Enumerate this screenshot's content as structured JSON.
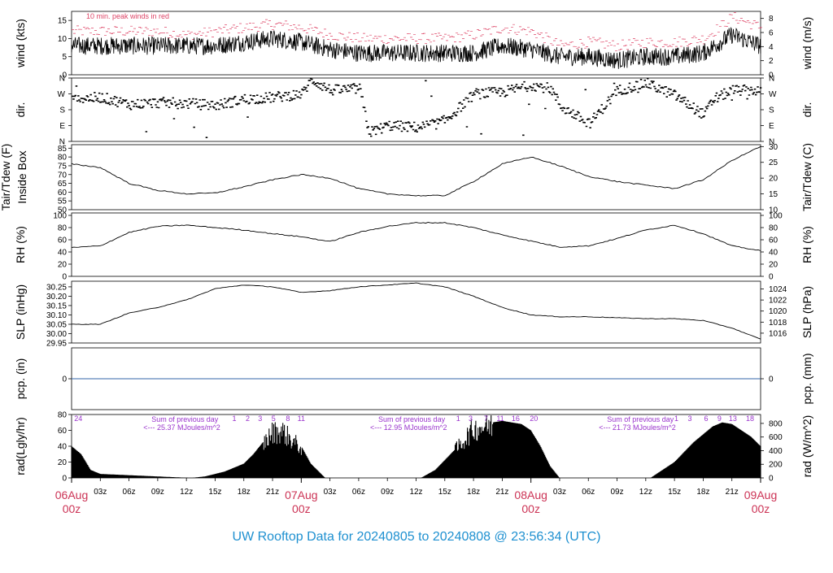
{
  "title": "UW Rooftop Data for 20240805  to  20240808 @ 23:56:34  (UTC)",
  "colors": {
    "axis": "#000000",
    "title": "#1e90d0",
    "date": "#cc3355",
    "peak": "#dd4466",
    "rad_note": "#9933cc",
    "pcp_line": "#3366aa"
  },
  "time_axis": {
    "hour_labels": [
      "03z",
      "06z",
      "09z",
      "12z",
      "15z",
      "18z",
      "21z",
      "03z",
      "06z",
      "09z",
      "12z",
      "15z",
      "18z",
      "21z",
      "03z",
      "06z",
      "09z",
      "12z",
      "15z",
      "18z",
      "21z"
    ],
    "hour_positions_h": [
      3,
      6,
      9,
      12,
      15,
      18,
      21,
      27,
      30,
      33,
      36,
      39,
      42,
      45,
      51,
      54,
      57,
      60,
      63,
      66,
      69
    ],
    "day_labels": [
      {
        "date": "06Aug",
        "sub": "00z",
        "h": 0
      },
      {
        "date": "07Aug",
        "sub": "00z",
        "h": 24
      },
      {
        "date": "08Aug",
        "sub": "00z",
        "h": 48
      },
      {
        "date": "09Aug",
        "sub": "00z",
        "h": 72
      }
    ],
    "range_h": [
      0,
      72
    ]
  },
  "chart_data": [
    {
      "type": "line",
      "name": "wind",
      "ylabel": "wind (kts)",
      "ylabel_right": "wind (m/s)",
      "ylim": [
        0,
        17.5
      ],
      "yticks": [
        0,
        5,
        10,
        15
      ],
      "right_ylim": [
        0,
        9
      ],
      "right_yticks": [
        0,
        2,
        4,
        6,
        8
      ],
      "annotation": "10 min. peak winds in red",
      "x": [
        0,
        3,
        6,
        9,
        12,
        15,
        18,
        21,
        24,
        27,
        30,
        33,
        36,
        39,
        42,
        45,
        48,
        51,
        54,
        57,
        60,
        63,
        66,
        69,
        72
      ],
      "values": [
        8,
        8,
        8,
        8,
        8,
        8,
        9,
        10,
        9,
        7,
        6,
        6,
        6,
        6,
        6,
        8,
        7,
        5,
        5,
        4,
        5,
        5,
        6,
        11,
        8
      ],
      "peak_values": [
        12,
        12,
        12,
        12,
        11,
        12,
        13,
        14,
        13,
        11,
        10,
        10,
        10,
        10,
        11,
        13,
        12,
        8,
        9,
        8,
        9,
        9,
        10,
        16,
        13
      ]
    },
    {
      "type": "scatter",
      "name": "direction",
      "ylabel": "dir.",
      "ylabel_right": "dir.",
      "yticks": [
        "N",
        "E",
        "S",
        "W",
        "N"
      ],
      "ylim": [
        0,
        360
      ],
      "x": [
        0,
        3,
        6,
        9,
        12,
        15,
        18,
        21,
        24,
        25,
        27,
        30,
        31,
        33,
        36,
        38,
        39,
        42,
        45,
        48,
        50,
        51,
        54,
        57,
        60,
        63,
        66,
        67,
        69,
        72
      ],
      "values": [
        240,
        250,
        210,
        220,
        215,
        205,
        240,
        250,
        270,
        350,
        290,
        300,
        50,
        90,
        80,
        100,
        120,
        270,
        280,
        320,
        300,
        200,
        100,
        290,
        330,
        260,
        150,
        240,
        290,
        290
      ]
    },
    {
      "type": "line",
      "name": "temperature",
      "ylabel": "Tair/Tdew (F)",
      "ylabel2": "Inside Box",
      "ylabel_right": "Tair/Tdew (C)",
      "ylim": [
        50,
        87
      ],
      "yticks": [
        50,
        55,
        60,
        65,
        70,
        75,
        80,
        85
      ],
      "right_ylim": [
        10,
        30.6
      ],
      "right_yticks": [
        10,
        15,
        20,
        25,
        30
      ],
      "x": [
        0,
        3,
        6,
        9,
        12,
        15,
        18,
        21,
        24,
        27,
        30,
        33,
        36,
        39,
        42,
        45,
        48,
        51,
        54,
        57,
        60,
        63,
        66,
        69,
        72
      ],
      "values": [
        76,
        74,
        65,
        61,
        59,
        59.5,
        63,
        67,
        70,
        68,
        62,
        59,
        58,
        58,
        66,
        76,
        80,
        75,
        69,
        66,
        64,
        62,
        67,
        78,
        86
      ]
    },
    {
      "type": "line",
      "name": "relative_humidity",
      "ylabel": "RH (%)",
      "ylabel_right": "RH (%)",
      "ylim": [
        0,
        104
      ],
      "yticks": [
        0,
        20,
        40,
        60,
        80,
        100
      ],
      "x": [
        0,
        3,
        6,
        9,
        12,
        15,
        18,
        21,
        24,
        27,
        30,
        33,
        36,
        39,
        42,
        45,
        48,
        51,
        54,
        57,
        60,
        63,
        66,
        69,
        72
      ],
      "values": [
        47,
        50,
        72,
        82,
        84,
        80,
        76,
        70,
        65,
        57,
        72,
        82,
        88,
        88,
        80,
        68,
        58,
        48,
        50,
        62,
        76,
        84,
        70,
        50,
        42
      ]
    },
    {
      "type": "line",
      "name": "pressure",
      "ylabel": "SLP (inHg)",
      "ylabel_right": "SLP (hPa)",
      "ylim": [
        29.95,
        30.28
      ],
      "yticks": [
        29.95,
        30.0,
        30.05,
        30.1,
        30.15,
        30.2,
        30.25
      ],
      "right_yticks": [
        1016,
        1018,
        1020,
        1022,
        1024
      ],
      "x": [
        0,
        3,
        6,
        9,
        12,
        15,
        18,
        21,
        24,
        27,
        30,
        33,
        36,
        39,
        42,
        45,
        48,
        51,
        54,
        57,
        60,
        63,
        66,
        69,
        72
      ],
      "values": [
        30.05,
        30.05,
        30.11,
        30.14,
        30.18,
        30.24,
        30.26,
        30.25,
        30.22,
        30.23,
        30.25,
        30.26,
        30.27,
        30.25,
        30.2,
        30.14,
        30.1,
        30.09,
        30.09,
        30.085,
        30.08,
        30.08,
        30.07,
        30.03,
        29.97
      ]
    },
    {
      "type": "line",
      "name": "precipitation",
      "ylabel": "pcp. (in)",
      "ylabel_right": "pcp. (mm)",
      "ylim": [
        -1,
        1
      ],
      "yticks": [
        0
      ],
      "right_yticks": [
        0
      ],
      "x": [
        0,
        72
      ],
      "values": [
        0,
        0
      ]
    },
    {
      "type": "area",
      "name": "radiation",
      "ylabel": "rad(Lgly/hr)",
      "ylabel_right": "rad (W/m^2)",
      "ylim": [
        0,
        80
      ],
      "yticks": [
        0,
        20,
        40,
        60,
        80
      ],
      "right_yticks": [
        0,
        200,
        400,
        600,
        800
      ],
      "x": [
        0,
        1,
        2,
        3,
        12.5,
        14,
        16,
        18,
        19,
        20,
        21,
        22,
        23,
        24,
        25,
        26.5,
        36.5,
        38,
        40,
        42,
        43,
        45,
        47,
        48,
        49,
        50,
        51,
        53,
        60.5,
        63,
        65,
        67,
        68,
        69,
        70,
        71,
        72
      ],
      "values": [
        40,
        30,
        10,
        5,
        0,
        2,
        8,
        18,
        30,
        45,
        60,
        62,
        50,
        40,
        18,
        0,
        0,
        10,
        35,
        65,
        68,
        72,
        68,
        60,
        40,
        15,
        0,
        0,
        0,
        20,
        45,
        65,
        70,
        68,
        60,
        52,
        40
      ],
      "annotations": [
        {
          "title": "Sum of previous day",
          "text": "<--- 25.37 MJoules/m^2",
          "hour": 7.5
        },
        {
          "title": "Sum of previous day",
          "text": "<--- 12.95 MJoules/m^2",
          "hour": 31.2
        },
        {
          "title": "Sum of previous day",
          "text": "<--- 21.73 MJoules/m^2",
          "hour": 55.1
        }
      ],
      "hour_marks": [
        {
          "label": "24",
          "h": 0.7
        },
        {
          "label": "1",
          "h": 17
        },
        {
          "label": "2",
          "h": 18.4
        },
        {
          "label": "3",
          "h": 19.7
        },
        {
          "label": "5",
          "h": 21.1
        },
        {
          "label": "8",
          "h": 22.6
        },
        {
          "label": "11",
          "h": 24
        },
        {
          "label": "1",
          "h": 40.4
        },
        {
          "label": "3",
          "h": 41.7
        },
        {
          "label": "7",
          "h": 43.3
        },
        {
          "label": "11",
          "h": 44.8
        },
        {
          "label": "16",
          "h": 46.4
        },
        {
          "label": "20",
          "h": 48.3
        },
        {
          "label": "1",
          "h": 63.2
        },
        {
          "label": "3",
          "h": 64.6
        },
        {
          "label": "6",
          "h": 66.3
        },
        {
          "label": "9",
          "h": 67.7
        },
        {
          "label": "13",
          "h": 69.1
        },
        {
          "label": "18",
          "h": 70.9
        }
      ]
    }
  ]
}
